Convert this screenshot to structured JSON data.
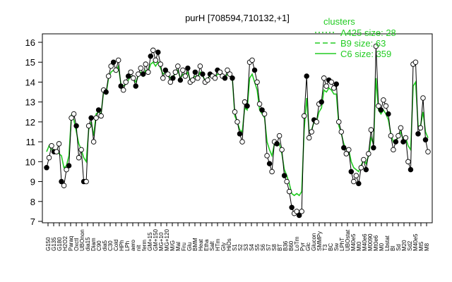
{
  "chart_data": {
    "type": "line",
    "title": "purH [708594,710132,+1]",
    "xlabel": "",
    "ylabel": "",
    "ylim": [
      7,
      16
    ],
    "yticks": [
      7,
      8,
      9,
      10,
      11,
      12,
      13,
      14,
      15,
      16
    ],
    "grid": false,
    "legend": {
      "title": "clusters",
      "placement": "top-right",
      "entries": [
        {
          "label": "A425 size: 28",
          "style": "dotted",
          "color": "#22cc22"
        },
        {
          "label": "B9 size: 63",
          "style": "dashed",
          "color": "#22cc22"
        },
        {
          "label": "C6 size: 359",
          "style": "solid",
          "color": "#22cc22"
        }
      ]
    },
    "x_tick_labels": [
      "G150",
      "G135",
      "G180",
      "H2O2",
      "Paraq",
      "Oxctl",
      "UBOnon",
      "dia15",
      "Diam",
      "C90",
      "dia5",
      "C30",
      "Cold",
      "HPh",
      "LPh",
      "aero",
      "nit",
      "ferm",
      "GM+15",
      "GM+150",
      "MG+10",
      "MG+120",
      "M/G",
      "Mal",
      "Fru",
      "Glu",
      "BMM",
      "Heat",
      "Etha",
      "Salt",
      "HTm",
      "Gly",
      "HiOs",
      "S1",
      "S2",
      "S3",
      "S4",
      "S5",
      "S6",
      "S7",
      "S8",
      "BT",
      "B36",
      "B60",
      "LoTm",
      "Pyr",
      "Glc",
      "Glucon",
      "SMMPy",
      "T3",
      "BC",
      "Sw",
      "LPhT",
      "UBOstat",
      "M40e5",
      "Mt0",
      "M40e6",
      "M0090",
      "Mt0e6",
      "M0",
      "Lbstat",
      "Bl",
      "Sd",
      "M20",
      "Sd2",
      "M40e5",
      "Mt5",
      "M8"
    ],
    "series": [
      {
        "name": "",
        "color": "#000000",
        "y": [
          9.7,
          10.2,
          10.8,
          10.5,
          10.5,
          10.9,
          9.0,
          8.8,
          9.6,
          9.8,
          12.2,
          12.4,
          11.8,
          10.2,
          10.6,
          9.0,
          9.0,
          11.8,
          12.2,
          11.0,
          12.2,
          12.6,
          12.3,
          13.6,
          13.5,
          14.3,
          14.8,
          15.0,
          14.6,
          15.1,
          13.8,
          13.6,
          14.0,
          14.3,
          14.5,
          14.2,
          13.8,
          14.4,
          14.7,
          14.4,
          14.9,
          14.5,
          15.3,
          15.6,
          15.1,
          15.5,
          14.9,
          14.2,
          14.6,
          14.4,
          14.0,
          14.2,
          14.5,
          14.8,
          14.1,
          14.6,
          14.3,
          14.7,
          14.0,
          14.1,
          14.5,
          14.2,
          14.8,
          14.4,
          14.0,
          14.1,
          14.4,
          14.3,
          14.2,
          14.6,
          14.5,
          14.3,
          14.2,
          14.6,
          14.4,
          14.2,
          12.5,
          12.0,
          11.4,
          11.0,
          13.0,
          12.8,
          15.0,
          15.1,
          14.6,
          14.0,
          12.9,
          12.6,
          12.4,
          10.3,
          9.9,
          9.5,
          11.0,
          10.9,
          11.3,
          10.6,
          9.3,
          9.0,
          8.5,
          7.7,
          7.4,
          7.5,
          7.3,
          7.5,
          12.3,
          14.3,
          11.2,
          11.5,
          12.1,
          12.0,
          12.9,
          13.0,
          14.2,
          13.8,
          14.1,
          14.0,
          13.7,
          13.9,
          12.0,
          11.5,
          10.7,
          10.4,
          10.6,
          9.5,
          9.0,
          9.3,
          8.9,
          9.7,
          10.1,
          9.6,
          10.4,
          11.6,
          10.7,
          15.8,
          12.8,
          12.6,
          13.1,
          12.8,
          12.4,
          11.3,
          10.6,
          11.0,
          11.3,
          11.7,
          11.0,
          11.2,
          10.0,
          9.6,
          14.9,
          15.0,
          11.4,
          11.7,
          13.2,
          11.1,
          10.5
        ]
      },
      {
        "name": "",
        "color": "#22cc22",
        "y": [
          10.5,
          10.8,
          10.6,
          10.6,
          10.5,
          10.4,
          10.3,
          9.7,
          9.8,
          10.3,
          12.3,
          12.1,
          11.5,
          10.9,
          10.6,
          10.2,
          10.0,
          11.6,
          12.0,
          11.3,
          12.4,
          12.5,
          12.4,
          13.5,
          13.4,
          14.2,
          14.5,
          14.6,
          14.5,
          14.8,
          13.9,
          13.8,
          13.9,
          14.1,
          14.3,
          14.2,
          14.0,
          14.3,
          14.5,
          14.3,
          14.6,
          14.5,
          14.9,
          15.0,
          14.8,
          15.0,
          14.7,
          14.4,
          14.5,
          14.4,
          14.2,
          14.3,
          14.4,
          14.6,
          14.2,
          14.4,
          14.3,
          14.5,
          14.1,
          14.2,
          14.3,
          14.2,
          14.5,
          14.3,
          14.1,
          14.2,
          14.3,
          14.3,
          14.2,
          14.4,
          14.4,
          14.3,
          14.2,
          14.4,
          14.3,
          14.2,
          12.3,
          12.0,
          11.6,
          11.5,
          12.7,
          12.6,
          14.2,
          14.4,
          14.0,
          13.6,
          12.6,
          12.4,
          12.2,
          11.0,
          10.6,
          10.3,
          10.9,
          10.8,
          10.9,
          10.4,
          9.6,
          9.3,
          8.9,
          8.4,
          8.3,
          8.4,
          8.3,
          8.5,
          11.6,
          13.2,
          11.5,
          11.6,
          12.0,
          12.0,
          12.5,
          12.7,
          13.6,
          13.5,
          13.7,
          13.6,
          13.4,
          13.4,
          11.8,
          11.4,
          10.9,
          10.6,
          10.6,
          10.0,
          9.7,
          9.6,
          9.5,
          9.8,
          10.1,
          9.9,
          10.3,
          11.2,
          10.9,
          14.2,
          12.6,
          12.4,
          12.6,
          12.4,
          12.1,
          11.4,
          11.0,
          11.1,
          11.2,
          11.5,
          11.1,
          11.2,
          10.8,
          10.6,
          13.8,
          14.0,
          11.8,
          11.8,
          12.5,
          11.5,
          11.2
        ]
      }
    ]
  }
}
